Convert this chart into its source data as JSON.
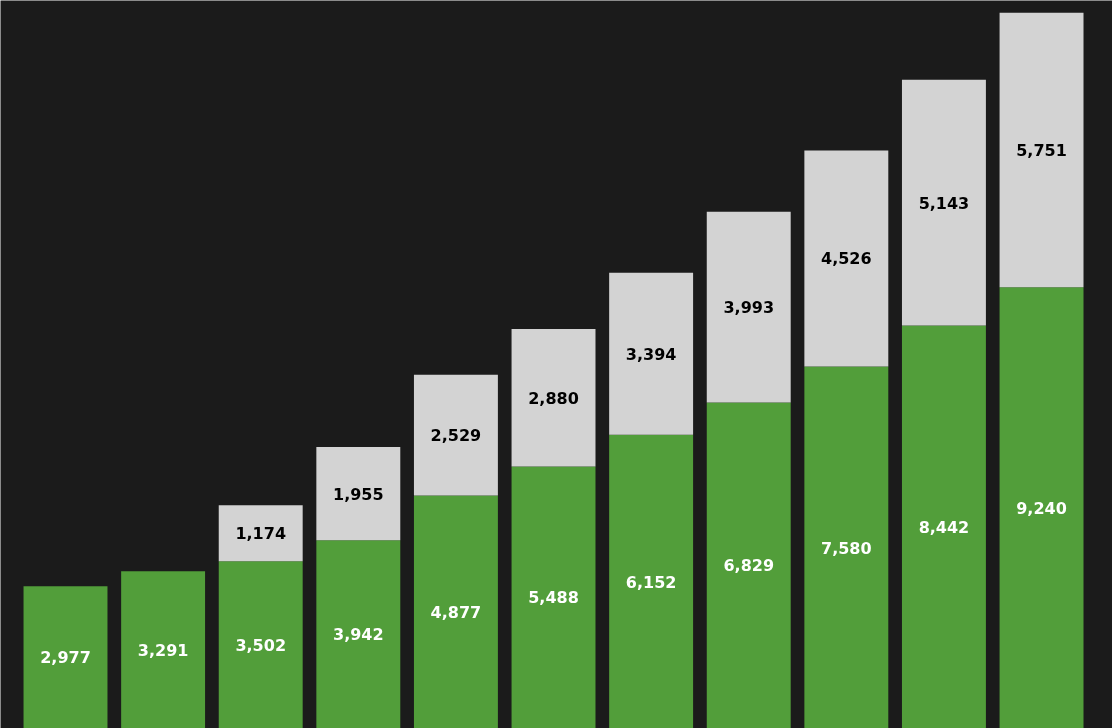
{
  "chart_data": {
    "type": "bar",
    "stacked": true,
    "categories": [
      null,
      null,
      null,
      null,
      null,
      null,
      null,
      null,
      null,
      null,
      null
    ],
    "series": [
      {
        "color": "#529e3a",
        "values": [
          2977,
          3291,
          3502,
          3942,
          4877,
          5488,
          6152,
          6829,
          7580,
          8442,
          9240
        ],
        "value_labels": [
          "2,977",
          "3,291",
          "3,502",
          "3,942",
          "4,877",
          "5,488",
          "6,152",
          "6,829",
          "7,580",
          "8,442",
          "9,240"
        ]
      },
      {
        "color": "#d3d3d3",
        "values": [
          null,
          null,
          1174,
          1955,
          2529,
          2880,
          3394,
          3993,
          4526,
          5143,
          5751
        ],
        "value_labels": [
          null,
          null,
          "1,174",
          "1,955",
          "2,529",
          "2,880",
          "3,394",
          "3,993",
          "4,526",
          "5,143",
          "5,751"
        ]
      }
    ],
    "tick_labels": false
  }
}
